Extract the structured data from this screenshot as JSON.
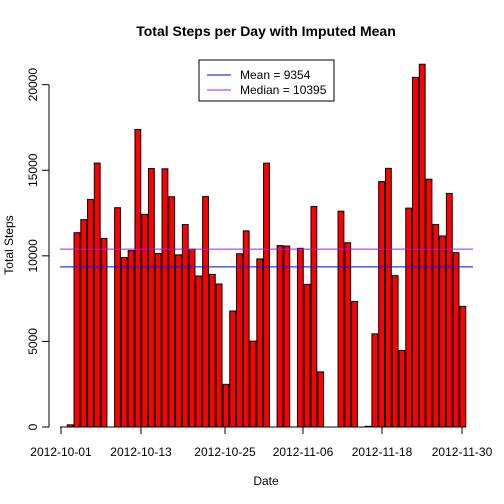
{
  "chart_data": {
    "type": "bar",
    "title": "Total Steps per Day with Imputed Mean",
    "xlabel": "Date",
    "ylabel": "Total Steps",
    "ylim": [
      0,
      21500
    ],
    "yticks": [
      0,
      5000,
      10000,
      15000,
      20000
    ],
    "xtick_labels": [
      "2012-10-01",
      "2012-10-13",
      "2012-10-25",
      "2012-11-06",
      "2012-11-18",
      "2012-11-30"
    ],
    "xtick_day_index": [
      0,
      12,
      24,
      36,
      48,
      60
    ],
    "bar_color": "#ff0000",
    "bar_border_color": "#000000",
    "categories": [
      "2012-10-01",
      "2012-10-02",
      "2012-10-03",
      "2012-10-04",
      "2012-10-05",
      "2012-10-06",
      "2012-10-07",
      "2012-10-08",
      "2012-10-09",
      "2012-10-10",
      "2012-10-11",
      "2012-10-12",
      "2012-10-13",
      "2012-10-14",
      "2012-10-15",
      "2012-10-16",
      "2012-10-17",
      "2012-10-18",
      "2012-10-19",
      "2012-10-20",
      "2012-10-21",
      "2012-10-22",
      "2012-10-23",
      "2012-10-24",
      "2012-10-25",
      "2012-10-26",
      "2012-10-27",
      "2012-10-28",
      "2012-10-29",
      "2012-10-30",
      "2012-10-31",
      "2012-11-01",
      "2012-11-02",
      "2012-11-03",
      "2012-11-04",
      "2012-11-05",
      "2012-11-06",
      "2012-11-07",
      "2012-11-08",
      "2012-11-09",
      "2012-11-10",
      "2012-11-11",
      "2012-11-12",
      "2012-11-13",
      "2012-11-14",
      "2012-11-15",
      "2012-11-16",
      "2012-11-17",
      "2012-11-18",
      "2012-11-19",
      "2012-11-20",
      "2012-11-21",
      "2012-11-22",
      "2012-11-23",
      "2012-11-24",
      "2012-11-25",
      "2012-11-26",
      "2012-11-27",
      "2012-11-28",
      "2012-11-29",
      "2012-11-30"
    ],
    "values": [
      0,
      126,
      11352,
      12116,
      13294,
      15420,
      11015,
      0,
      12811,
      9900,
      10304,
      17382,
      12426,
      15098,
      10139,
      15084,
      13452,
      10056,
      11829,
      10395,
      8821,
      13460,
      8918,
      8355,
      2492,
      6778,
      10119,
      11458,
      5018,
      9819,
      15414,
      0,
      10600,
      10571,
      0,
      10439,
      8334,
      12883,
      3219,
      0,
      0,
      12608,
      10765,
      7336,
      0,
      41,
      5441,
      14339,
      15110,
      8841,
      4472,
      12787,
      20427,
      21194,
      14478,
      11834,
      11162,
      13646,
      10183,
      7047,
      0
    ],
    "hlines": [
      {
        "name": "Mean = ",
        "value": 9354,
        "color": "#0000ff"
      },
      {
        "name": "Median = ",
        "value": 10395,
        "color": "#a020f0"
      }
    ],
    "legend": {
      "placement": "top-center",
      "entries": [
        {
          "label": "Mean =  9354",
          "color": "#0000ff"
        },
        {
          "label": "Median =  10395",
          "color": "#a020f0"
        }
      ]
    }
  }
}
